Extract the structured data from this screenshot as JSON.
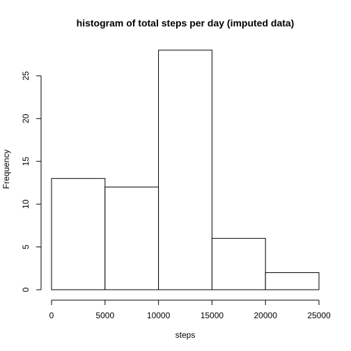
{
  "chart_data": {
    "type": "bar",
    "title": "histogram of total steps per day (imputed data)",
    "xlabel": "steps",
    "ylabel": "Frequency",
    "bins": [
      {
        "from": 0,
        "to": 5000,
        "count": 13
      },
      {
        "from": 5000,
        "to": 10000,
        "count": 12
      },
      {
        "from": 10000,
        "to": 15000,
        "count": 28
      },
      {
        "from": 15000,
        "to": 20000,
        "count": 6
      },
      {
        "from": 20000,
        "to": 25000,
        "count": 2
      }
    ],
    "xlim": [
      0,
      25000
    ],
    "ylim": [
      0,
      28
    ],
    "x_ticks": [
      0,
      5000,
      10000,
      15000,
      20000,
      25000
    ],
    "y_ticks": [
      0,
      5,
      10,
      15,
      20,
      25
    ],
    "grid": false,
    "bar_fill": "#ffffff",
    "bar_stroke": "#000000"
  }
}
